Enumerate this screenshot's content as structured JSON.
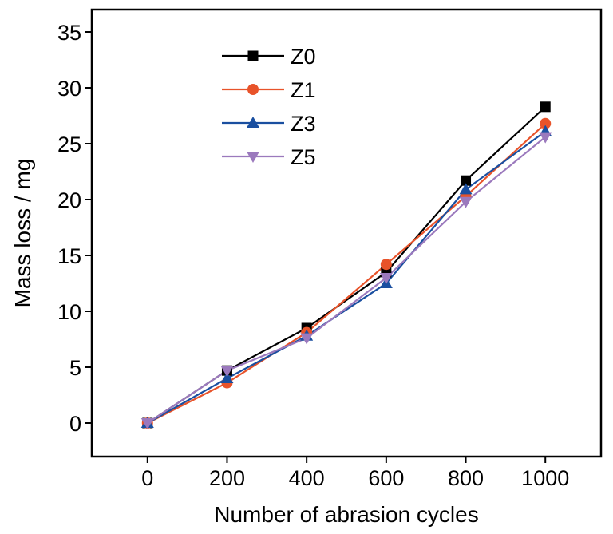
{
  "chart_data": {
    "type": "line",
    "xlabel": "Number of abrasion cycles",
    "ylabel": "Mass loss / mg",
    "xlim": [
      -140,
      1140
    ],
    "ylim": [
      -3,
      37
    ],
    "xticks": [
      0,
      200,
      400,
      600,
      800,
      1000
    ],
    "yticks": [
      0,
      5,
      10,
      15,
      20,
      25,
      30,
      35
    ],
    "grid": false,
    "legend_position": "top-left",
    "x": [
      0,
      200,
      400,
      600,
      800,
      1000
    ],
    "series": [
      {
        "name": "Z0",
        "values": [
          0,
          4.7,
          8.5,
          13.5,
          21.7,
          28.3
        ],
        "color": "#000000",
        "marker": "square"
      },
      {
        "name": "Z1",
        "values": [
          0,
          3.6,
          8.1,
          14.2,
          20.3,
          26.8
        ],
        "color": "#e8532a",
        "marker": "circle"
      },
      {
        "name": "Z3",
        "values": [
          0,
          4.0,
          7.8,
          12.5,
          20.9,
          26.1
        ],
        "color": "#1a4fa0",
        "marker": "triangle-up"
      },
      {
        "name": "Z5",
        "values": [
          0,
          4.7,
          7.6,
          13.0,
          19.8,
          25.6
        ],
        "color": "#9b79bd",
        "marker": "triangle-down"
      }
    ]
  }
}
